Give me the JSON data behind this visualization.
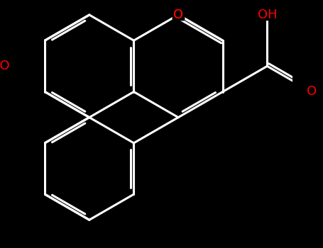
{
  "bg_color": "#000000",
  "bond_color": "#000000",
  "o_color": "#ff0000",
  "line_width": 2.2,
  "font_size": 13,
  "figsize": [
    4.55,
    3.5
  ],
  "dpi": 100,
  "xlim": [
    -0.5,
    7.0
  ],
  "ylim": [
    -3.5,
    4.0
  ]
}
